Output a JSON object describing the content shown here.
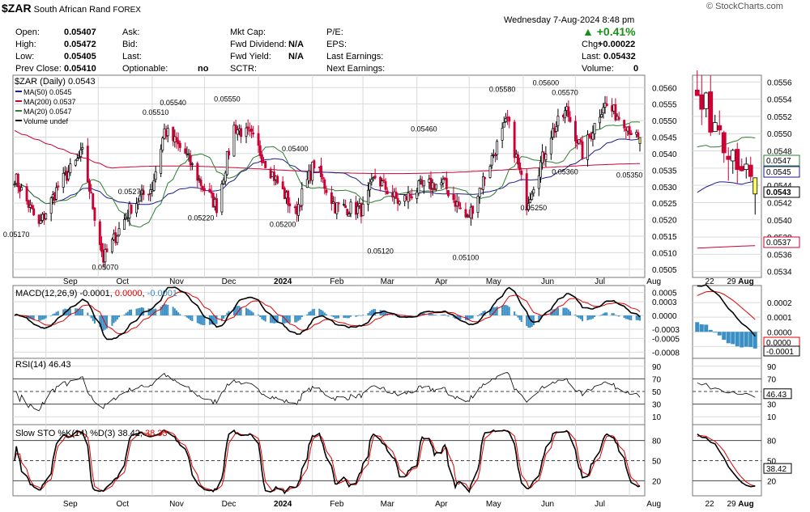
{
  "header": {
    "symbol": "$ZAR",
    "name": "South African Rand",
    "exchange": "FOREX",
    "watermark": "© StockCharts.com",
    "datetime": "Wednesday  7-Aug-2024  8:48 pm",
    "change_pct": "+0.41%",
    "chg_label": "Chg:",
    "chg_value": "+0.00022",
    "last_label": "Last:",
    "last_value": "0.05432",
    "volume_label": "Volume:",
    "volume_value": "0",
    "open_label": "Open:",
    "open_value": "0.05407",
    "high_label": "High:",
    "high_value": "0.05472",
    "low_label": "Low:",
    "low_value": "0.05405",
    "prevclose_label": "Prev Close:",
    "prevclose_value": "0.05410",
    "ask_label": "Ask:",
    "bid_label": "Bid:",
    "lastq_label": "Last:",
    "optionable_label": "Optionable:",
    "optionable_value": "no",
    "mktcap_label": "Mkt Cap:",
    "fwddiv_label": "Fwd Dividend:",
    "fwddiv_value": "N/A",
    "fwdyield_label": "Fwd Yield:",
    "fwdyield_value": "N/A",
    "sctr_label": "SCTR:",
    "pe_label": "P/E:",
    "eps_label": "EPS:",
    "lastearn_label": "Last Earnings:",
    "nextearn_label": "Next Earnings:"
  },
  "colors": {
    "up_candle": "#000000",
    "down_candle": "#cc0033",
    "ma50": "#1c1c8c",
    "ma200": "#cc0033",
    "ma20": "#2e7d32",
    "macd_hist": "#3a8fc4",
    "signal": "#e00000",
    "grid": "#d9d9d9",
    "current_candle": "#ffff66"
  },
  "chart_data": [
    {
      "type": "candlestick",
      "title": "$ZAR (Daily) 0.0543",
      "legend": [
        "MA(50) 0.0545",
        "MA(200) 0.0537",
        "MA(20) 0.0547",
        "Volume undef"
      ],
      "ylim": [
        0.0503,
        0.0563
      ],
      "y_ticks": [
        "0.0505",
        "0.0510",
        "0.0515",
        "0.0520",
        "0.0525",
        "0.0530",
        "0.0535",
        "0.0540",
        "0.0545",
        "0.0550",
        "0.0555",
        "0.0560"
      ],
      "x_ticks": [
        "Sep",
        "Oct",
        "Nov",
        "Dec",
        "2024",
        "Feb",
        "Mar",
        "Apr",
        "May",
        "Jun",
        "Jul",
        "Aug"
      ],
      "anchors": [
        {
          "date": "2023-08-14",
          "close": 0.0533
        },
        {
          "date": "2023-08-28",
          "close": 0.0518
        },
        {
          "date": "2023-09-08",
          "close": 0.053
        },
        {
          "date": "2023-09-22",
          "close": 0.054
        },
        {
          "date": "2023-10-04",
          "close": 0.0508
        },
        {
          "date": "2023-10-20",
          "close": 0.0524
        },
        {
          "date": "2023-11-01",
          "close": 0.053
        },
        {
          "date": "2023-11-08",
          "close": 0.0547
        },
        {
          "date": "2023-11-20",
          "close": 0.054
        },
        {
          "date": "2023-11-30",
          "close": 0.053
        },
        {
          "date": "2023-12-08",
          "close": 0.0524
        },
        {
          "date": "2023-12-18",
          "close": 0.0548
        },
        {
          "date": "2023-12-28",
          "close": 0.0545
        },
        {
          "date": "2024-01-10",
          "close": 0.0533
        },
        {
          "date": "2024-01-22",
          "close": 0.0522
        },
        {
          "date": "2024-02-02",
          "close": 0.0537
        },
        {
          "date": "2024-02-14",
          "close": 0.0524
        },
        {
          "date": "2024-03-01",
          "close": 0.0523
        },
        {
          "date": "2024-03-08",
          "close": 0.0533
        },
        {
          "date": "2024-03-22",
          "close": 0.0525
        },
        {
          "date": "2024-04-03",
          "close": 0.053
        },
        {
          "date": "2024-04-16",
          "close": 0.0531
        },
        {
          "date": "2024-04-30",
          "close": 0.052
        },
        {
          "date": "2024-05-15",
          "close": 0.054
        },
        {
          "date": "2024-05-23",
          "close": 0.055
        },
        {
          "date": "2024-06-03",
          "close": 0.0525
        },
        {
          "date": "2024-06-17",
          "close": 0.0546
        },
        {
          "date": "2024-06-26",
          "close": 0.0553
        },
        {
          "date": "2024-07-05",
          "close": 0.054
        },
        {
          "date": "2024-07-17",
          "close": 0.0555
        },
        {
          "date": "2024-07-29",
          "close": 0.055
        },
        {
          "date": "2024-08-07",
          "close": 0.0543
        }
      ],
      "annotations": [
        {
          "date": "2023-08-15",
          "value": 0.0517,
          "label": "0.05170"
        },
        {
          "date": "2023-10-05",
          "value": 0.0507,
          "label": "0.05070"
        },
        {
          "date": "2023-10-20",
          "value": 0.0527,
          "label": "0.05270"
        },
        {
          "date": "2023-11-03",
          "value": 0.0551,
          "label": "0.05510"
        },
        {
          "date": "2023-11-13",
          "value": 0.0554,
          "label": "0.05540"
        },
        {
          "date": "2023-11-29",
          "value": 0.0522,
          "label": "0.05220"
        },
        {
          "date": "2023-12-14",
          "value": 0.0555,
          "label": "0.05550"
        },
        {
          "date": "2024-01-15",
          "value": 0.052,
          "label": "0.05200"
        },
        {
          "date": "2024-01-22",
          "value": 0.054,
          "label": "0.05400"
        },
        {
          "date": "2024-03-11",
          "value": 0.0512,
          "label": "0.05120"
        },
        {
          "date": "2024-04-05",
          "value": 0.0546,
          "label": "0.05460"
        },
        {
          "date": "2024-04-29",
          "value": 0.051,
          "label": "0.05100"
        },
        {
          "date": "2024-05-20",
          "value": 0.0558,
          "label": "0.05580"
        },
        {
          "date": "2024-06-07",
          "value": 0.0525,
          "label": "0.05250"
        },
        {
          "date": "2024-06-14",
          "value": 0.056,
          "label": "0.05600"
        },
        {
          "date": "2024-06-25",
          "value": 0.0536,
          "label": "0.05360"
        },
        {
          "date": "2024-06-25",
          "value": 0.0557,
          "label": "0.05570"
        },
        {
          "date": "2024-08-01",
          "value": 0.0535,
          "label": "0.05350"
        }
      ],
      "right_markers": [
        "0.0547",
        "0.0545",
        "0.0543",
        "0.0537"
      ]
    },
    {
      "type": "line",
      "title": "MACD(12,26,9) -0.0001, 0.0000, -0.0001",
      "title_parts": [
        "MACD(12,26,9) -0.0001, ",
        "0.0000",
        ", ",
        "-0.0001"
      ],
      "ylim": [
        -0.0009,
        0.0006
      ],
      "y_ticks": [
        "0.0005",
        "0.0003",
        "0.0000",
        "-0.0003",
        "-0.0005",
        "-0.0008"
      ],
      "right_markers": [
        "0.0000",
        "-0.0001"
      ]
    },
    {
      "type": "line",
      "title": "RSI(14) 46.43",
      "ylim": [
        0,
        100
      ],
      "y_ticks": [
        "90",
        "70",
        "50",
        "30",
        "10"
      ],
      "right_markers": [
        "46.43"
      ]
    },
    {
      "type": "line",
      "title": "Slow STO %K(14) %D(3) 38.42, 38.33",
      "title_parts": [
        "Slow STO %K(14) %D(3) 38.42, ",
        "38.33"
      ],
      "ylim": [
        0,
        100
      ],
      "y_ticks": [
        "80",
        "50",
        "20"
      ],
      "right_markers": [
        "38.42"
      ]
    }
  ],
  "inset": {
    "main_y_ticks": [
      "0.0556",
      "0.0554",
      "0.0552",
      "0.0550",
      "0.0548",
      "0.0546",
      "0.0544",
      "0.0542",
      "0.0540",
      "0.0538",
      "0.0536",
      "0.0534"
    ],
    "x_ticks": [
      "22",
      "29",
      "Aug"
    ],
    "macd_y_ticks": [
      "0.0002",
      "0.0001",
      "0.0000",
      "-0.0001"
    ],
    "rsi_y_ticks": [
      "90",
      "70",
      "50",
      "30",
      "10"
    ],
    "sto_y_ticks": [
      "80",
      "50",
      "20"
    ]
  }
}
